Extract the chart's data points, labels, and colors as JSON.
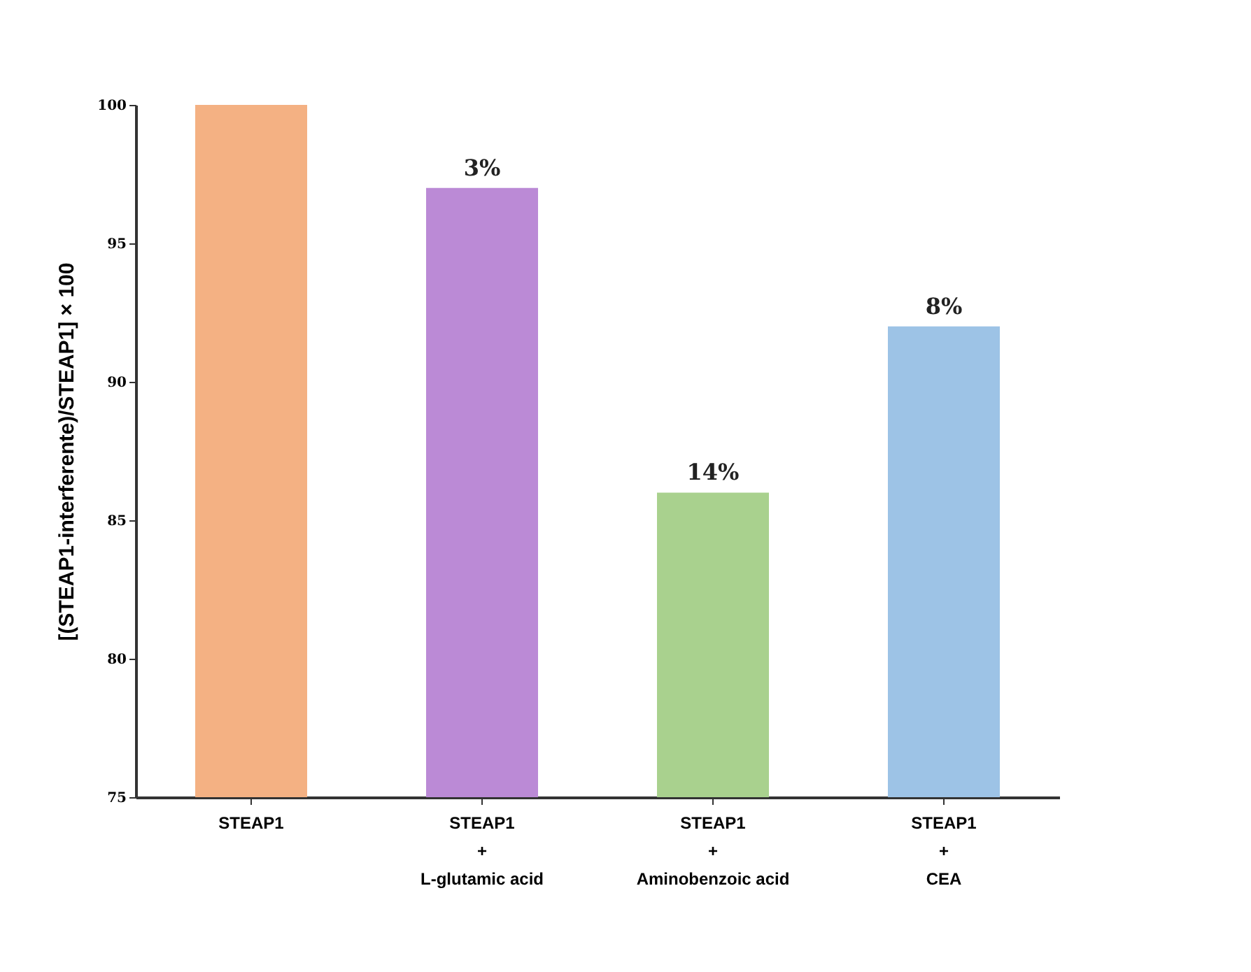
{
  "chart_data": {
    "type": "bar",
    "ylabel": "[(STEAP1-interferente)/STEAP1] × 100",
    "categories": [
      "STEAP1",
      "STEAP1\n+\nL-glutamic acid",
      "STEAP1\n+\nAminobenzoic acid",
      "STEAP1\n+\nCEA"
    ],
    "values": [
      100,
      97,
      86,
      92
    ],
    "colors": [
      "#f4b183",
      "#bb8ad6",
      "#a9d18e",
      "#9dc3e6"
    ],
    "annotations": [
      {
        "text": "3%",
        "x": "STEAP1\n+\nL-glutamic acid",
        "y": 97
      },
      {
        "text": "14%",
        "x": "STEAP1\n+\nAminobenzoic acid",
        "y": 86
      },
      {
        "text": "8%",
        "x": "STEAP1\n+\nCEA",
        "y": 92
      }
    ],
    "ylim": [
      75,
      100
    ],
    "yticks": [
      75,
      80,
      85,
      90,
      95,
      100
    ],
    "grid": false
  }
}
